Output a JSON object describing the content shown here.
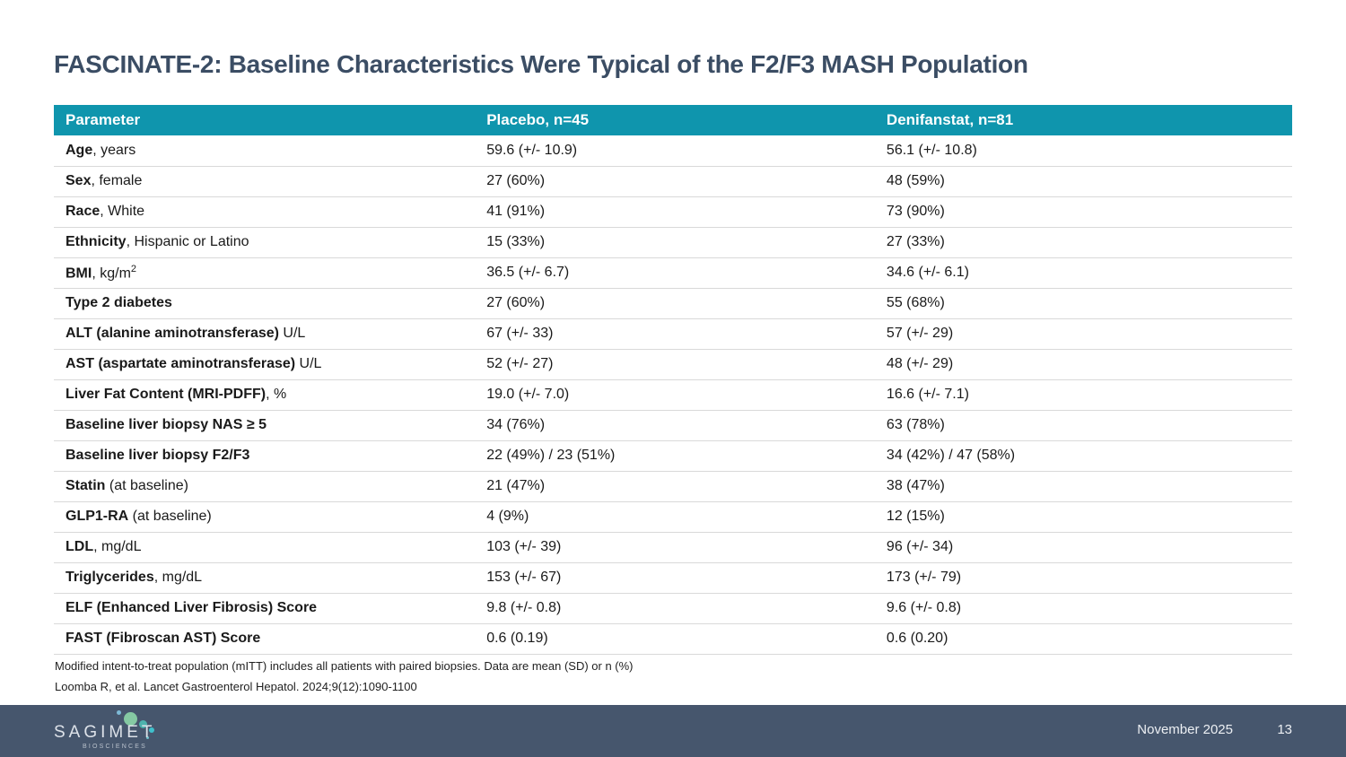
{
  "slide": {
    "title": "FASCINATE-2: Baseline Characteristics Were Typical of the F2/F3 MASH Population"
  },
  "table": {
    "headers": [
      "Parameter",
      "Placebo, n=45",
      "Denifanstat, n=81"
    ],
    "rows": [
      {
        "param_bold": "Age",
        "param_rest": ", years",
        "placebo": "59.6 (+/- 10.9)",
        "denifanstat": "56.1 (+/- 10.8)"
      },
      {
        "param_bold": "Sex",
        "param_rest": ", female",
        "placebo": "27 (60%)",
        "denifanstat": "48 (59%)"
      },
      {
        "param_bold": "Race",
        "param_rest": ", White",
        "placebo": "41 (91%)",
        "denifanstat": "73 (90%)"
      },
      {
        "param_bold": "Ethnicity",
        "param_rest": ", Hispanic or Latino",
        "placebo": "15 (33%)",
        "denifanstat": "27 (33%)"
      },
      {
        "param_bold": "BMI",
        "param_rest": ", kg/m",
        "param_sup": "2",
        "placebo": "36.5 (+/- 6.7)",
        "denifanstat": "34.6 (+/- 6.1)"
      },
      {
        "param_bold": "Type 2 diabetes",
        "param_rest": "",
        "placebo": "27 (60%)",
        "denifanstat": "55 (68%)"
      },
      {
        "param_bold": "ALT (alanine aminotransferase)",
        "param_rest": " U/L",
        "placebo": "67 (+/- 33)",
        "denifanstat": "57 (+/- 29)"
      },
      {
        "param_bold": "AST (aspartate aminotransferase)",
        "param_rest": " U/L",
        "placebo": "52 (+/- 27)",
        "denifanstat": "48 (+/- 29)"
      },
      {
        "param_bold": "Liver Fat Content (MRI-PDFF)",
        "param_rest": ", %",
        "placebo": "19.0 (+/- 7.0)",
        "denifanstat": "16.6 (+/- 7.1)"
      },
      {
        "param_bold": "Baseline liver biopsy NAS ≥ 5",
        "param_rest": "",
        "placebo": "34 (76%)",
        "denifanstat": "63 (78%)"
      },
      {
        "param_bold": "Baseline liver biopsy F2/F3",
        "param_rest": "",
        "placebo": "22 (49%) / 23 (51%)",
        "denifanstat": "34 (42%) / 47 (58%)"
      },
      {
        "param_bold": "Statin",
        "param_rest": " (at baseline)",
        "placebo": "21 (47%)",
        "denifanstat": "38 (47%)"
      },
      {
        "param_bold": "GLP1-RA",
        "param_rest": " (at baseline)",
        "placebo": "4 (9%)",
        "denifanstat": "12 (15%)"
      },
      {
        "param_bold": "LDL",
        "param_rest": ", mg/dL",
        "placebo": "103 (+/- 39)",
        "denifanstat": "96 (+/- 34)"
      },
      {
        "param_bold": "Triglycerides",
        "param_rest": ", mg/dL",
        "placebo": "153 (+/- 67)",
        "denifanstat": "173 (+/- 79)"
      },
      {
        "param_bold": "ELF (Enhanced Liver Fibrosis) Score",
        "param_rest": "",
        "placebo": "9.8 (+/- 0.8)",
        "denifanstat": "9.6 (+/- 0.8)"
      },
      {
        "param_bold": "FAST (Fibroscan AST) Score",
        "param_rest": "",
        "placebo": "0.6 (0.19)",
        "denifanstat": "0.6 (0.20)"
      }
    ]
  },
  "footnotes": [
    "Modified intent-to-treat population (mITT) includes all patients with paired biopsies. Data are mean (SD) or n (%)",
    "Loomba R, et al. Lancet Gastroenterol Hepatol. 2024;9(12):1090-1100"
  ],
  "footer": {
    "logo_text": "SAGIMET",
    "logo_subtext": "BIOSCIENCES",
    "date": "November 2025",
    "page_number": "13"
  },
  "colors": {
    "header_teal": "#0f95ad",
    "title_navy": "#3b4d64",
    "footer_slate": "#46566d"
  }
}
